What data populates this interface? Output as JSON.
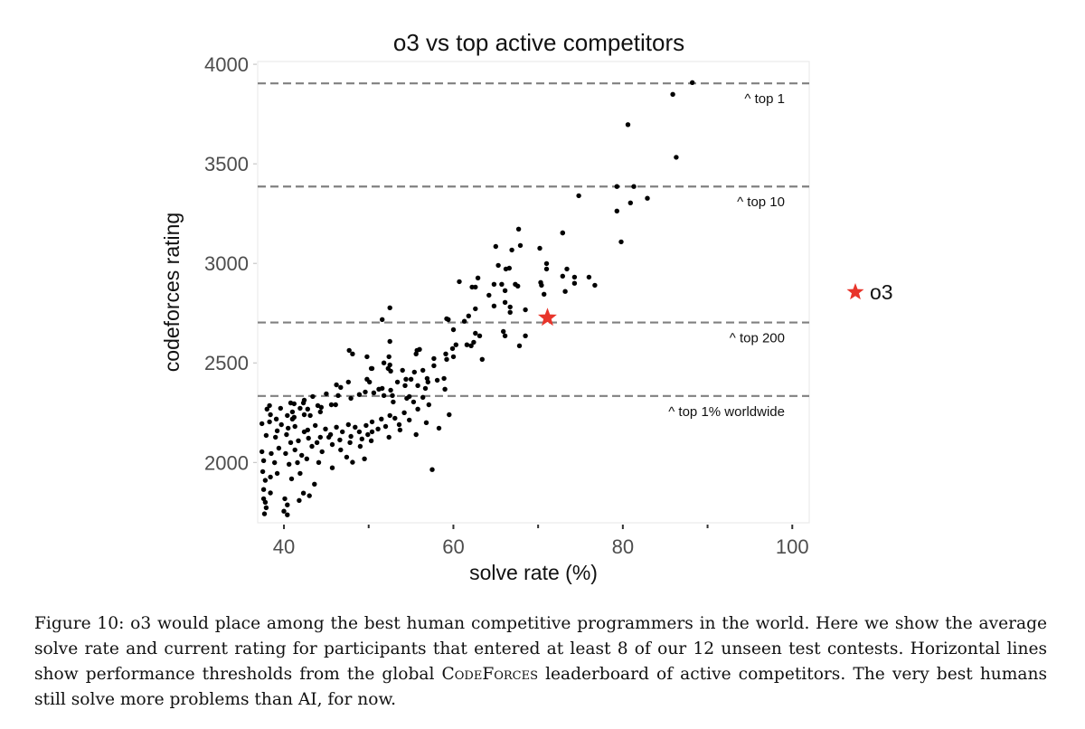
{
  "chart_data": {
    "type": "scatter",
    "title": "o3 vs top active competitors",
    "xlabel": "solve rate (%)",
    "ylabel": "codeforces rating",
    "xlim": [
      36.9,
      102
    ],
    "ylim": [
      1697,
      4014
    ],
    "xticks": [
      40,
      60,
      80,
      100
    ],
    "xtick_labels": [
      "40",
      "60",
      "80",
      "100"
    ],
    "yticks": [
      2000,
      2500,
      3000,
      3500,
      4000
    ],
    "ytick_labels": [
      "2000",
      "2500",
      "3000",
      "3500",
      "4000"
    ],
    "grid": false,
    "legend": {
      "position": "right",
      "entries": [
        {
          "label": "o3",
          "marker": "star",
          "color": "#e8352b"
        }
      ]
    },
    "thresholds": [
      {
        "value": 3904,
        "label": "^ top 1"
      },
      {
        "value": 3386,
        "label": "^ top 10"
      },
      {
        "value": 2703,
        "label": "^ top 200"
      },
      {
        "value": 2334,
        "label": "^ top 1% worldwide"
      }
    ],
    "highlight": {
      "name": "o3",
      "x": 71.1,
      "y": 2727,
      "color": "#e8352b"
    },
    "series": [
      {
        "name": "competitors",
        "color": "#000000",
        "points": [
          [
            88.2,
            3908
          ],
          [
            85.9,
            3849
          ],
          [
            80.6,
            3697
          ],
          [
            86.3,
            3533
          ],
          [
            79.3,
            3386
          ],
          [
            81.3,
            3386
          ],
          [
            74.8,
            3340
          ],
          [
            80.9,
            3304
          ],
          [
            82.9,
            3327
          ],
          [
            79.3,
            3263
          ],
          [
            72.9,
            3153
          ],
          [
            79.8,
            3108
          ],
          [
            67.7,
            3172
          ],
          [
            72.9,
            3153
          ],
          [
            65.0,
            3085
          ],
          [
            66.9,
            3067
          ],
          [
            67.9,
            3090
          ],
          [
            70.2,
            3076
          ],
          [
            71.0,
            2999
          ],
          [
            73.4,
            2972
          ],
          [
            62.9,
            2927
          ],
          [
            65.3,
            2990
          ],
          [
            66.2,
            2972
          ],
          [
            66.6,
            2976
          ],
          [
            71.0,
            2972
          ],
          [
            72.9,
            2936
          ],
          [
            74.3,
            2931
          ],
          [
            76.0,
            2931
          ],
          [
            74.3,
            2900
          ],
          [
            76.7,
            2890
          ],
          [
            60.7,
            2908
          ],
          [
            62.2,
            2881
          ],
          [
            62.6,
            2881
          ],
          [
            64.8,
            2895
          ],
          [
            65.7,
            2895
          ],
          [
            67.3,
            2895
          ],
          [
            67.6,
            2886
          ],
          [
            70.3,
            2904
          ],
          [
            70.4,
            2890
          ],
          [
            73.2,
            2859
          ],
          [
            66.1,
            2863
          ],
          [
            70.7,
            2845
          ],
          [
            64.2,
            2840
          ],
          [
            66.1,
            2804
          ],
          [
            66.7,
            2781
          ],
          [
            64.8,
            2786
          ],
          [
            62.6,
            2772
          ],
          [
            66.7,
            2754
          ],
          [
            68.5,
            2767
          ],
          [
            61.8,
            2736
          ],
          [
            61.3,
            2709
          ],
          [
            59.2,
            2722
          ],
          [
            59.4,
            2718
          ],
          [
            65.9,
            2658
          ],
          [
            66.1,
            2636
          ],
          [
            68.5,
            2636
          ],
          [
            63.1,
            2636
          ],
          [
            62.6,
            2649
          ],
          [
            67.8,
            2586
          ],
          [
            60.0,
            2667
          ],
          [
            62.4,
            2604
          ],
          [
            62.1,
            2586
          ],
          [
            60.3,
            2591
          ],
          [
            61.6,
            2591
          ],
          [
            59.9,
            2572
          ],
          [
            59.1,
            2545
          ],
          [
            63.4,
            2518
          ],
          [
            60.0,
            2531
          ],
          [
            59.2,
            2518
          ],
          [
            52.5,
            2777
          ],
          [
            51.6,
            2718
          ],
          [
            52.5,
            2608
          ],
          [
            47.7,
            2563
          ],
          [
            48.1,
            2545
          ],
          [
            49.8,
            2531
          ],
          [
            55.6,
            2545
          ],
          [
            55.7,
            2563
          ],
          [
            56.0,
            2568
          ],
          [
            57.7,
            2522
          ],
          [
            57.7,
            2486
          ],
          [
            52.4,
            2531
          ],
          [
            51.8,
            2500
          ],
          [
            52.5,
            2490
          ],
          [
            50.4,
            2472
          ],
          [
            50.3,
            2472
          ],
          [
            52.3,
            2472
          ],
          [
            52.6,
            2459
          ],
          [
            54.0,
            2463
          ],
          [
            54.4,
            2418
          ],
          [
            55.0,
            2418
          ],
          [
            56.4,
            2463
          ],
          [
            55.4,
            2454
          ],
          [
            49.8,
            2418
          ],
          [
            50.1,
            2404
          ],
          [
            47.6,
            2404
          ],
          [
            46.2,
            2390
          ],
          [
            46.7,
            2377
          ],
          [
            51.2,
            2368
          ],
          [
            51.6,
            2372
          ],
          [
            52.6,
            2363
          ],
          [
            53.4,
            2404
          ],
          [
            56.9,
            2422
          ],
          [
            57.0,
            2404
          ],
          [
            54.3,
            2386
          ],
          [
            55.8,
            2386
          ],
          [
            56.7,
            2372
          ],
          [
            59.0,
            2368
          ],
          [
            58.1,
            2413
          ],
          [
            58.9,
            2422
          ],
          [
            54.5,
            2322
          ],
          [
            52.8,
            2336
          ],
          [
            49.6,
            2354
          ],
          [
            51.8,
            2336
          ],
          [
            52.9,
            2304
          ],
          [
            54.8,
            2331
          ],
          [
            56.4,
            2327
          ],
          [
            55.3,
            2304
          ],
          [
            55.8,
            2268
          ],
          [
            57.1,
            2290
          ],
          [
            45.6,
            2290
          ],
          [
            46.1,
            2290
          ],
          [
            44.0,
            2286
          ],
          [
            44.4,
            2277
          ],
          [
            42.4,
            2313
          ],
          [
            44.3,
            2254
          ],
          [
            41.9,
            2272
          ],
          [
            41.2,
            2295
          ],
          [
            42.3,
            2299
          ],
          [
            42.4,
            2240
          ],
          [
            42.8,
            2268
          ],
          [
            41.0,
            2254
          ],
          [
            41.2,
            2227
          ],
          [
            43.1,
            2236
          ],
          [
            40.4,
            2236
          ],
          [
            41.0,
            2218
          ],
          [
            38.0,
            2268
          ],
          [
            38.4,
            2240
          ],
          [
            39.1,
            2218
          ],
          [
            37.4,
            2195
          ],
          [
            38.3,
            2204
          ],
          [
            39.7,
            2190
          ],
          [
            40.5,
            2172
          ],
          [
            41.3,
            2181
          ],
          [
            42.8,
            2163
          ],
          [
            43.7,
            2186
          ],
          [
            44.9,
            2168
          ],
          [
            46.2,
            2177
          ],
          [
            47.6,
            2190
          ],
          [
            48.9,
            2154
          ],
          [
            49.7,
            2186
          ],
          [
            50.4,
            2204
          ],
          [
            51.5,
            2218
          ],
          [
            52.5,
            2236
          ],
          [
            53.6,
            2190
          ],
          [
            54.8,
            2213
          ],
          [
            37.9,
            2136
          ],
          [
            39.0,
            2127
          ],
          [
            40.3,
            2140
          ],
          [
            41.7,
            2109
          ],
          [
            42.9,
            2122
          ],
          [
            44.3,
            2127
          ],
          [
            45.5,
            2140
          ],
          [
            46.6,
            2113
          ],
          [
            47.9,
            2131
          ],
          [
            49.2,
            2118
          ],
          [
            50.4,
            2154
          ],
          [
            52.4,
            2127
          ],
          [
            53.7,
            2163
          ],
          [
            55.6,
            2140
          ],
          [
            56.8,
            2200
          ],
          [
            58.3,
            2172
          ],
          [
            59.5,
            2240
          ],
          [
            37.4,
            2054
          ],
          [
            38.5,
            2045
          ],
          [
            39.4,
            2072
          ],
          [
            40.2,
            2045
          ],
          [
            41.3,
            2063
          ],
          [
            42.1,
            2036
          ],
          [
            43.3,
            2081
          ],
          [
            44.5,
            2054
          ],
          [
            45.7,
            2090
          ],
          [
            46.7,
            2063
          ],
          [
            47.8,
            2100
          ],
          [
            49.0,
            2081
          ],
          [
            50.3,
            2109
          ],
          [
            37.6,
            2009
          ],
          [
            38.9,
            1999
          ],
          [
            40.6,
            1991
          ],
          [
            41.6,
            1999
          ],
          [
            42.7,
            2018
          ],
          [
            44.1,
            2000
          ],
          [
            45.7,
            1973
          ],
          [
            47.4,
            2027
          ],
          [
            48.1,
            2001
          ],
          [
            57.5,
            1964
          ],
          [
            49.5,
            2018
          ],
          [
            37.5,
            1954
          ],
          [
            38.4,
            1927
          ],
          [
            37.8,
            1910
          ],
          [
            39.2,
            1945
          ],
          [
            40.9,
            1918
          ],
          [
            41.9,
            1945
          ],
          [
            43.6,
            1891
          ],
          [
            37.6,
            1864
          ],
          [
            38.4,
            1847
          ],
          [
            37.6,
            1818
          ],
          [
            37.8,
            1800
          ],
          [
            40.1,
            1818
          ],
          [
            40.4,
            1787
          ],
          [
            41.8,
            1809
          ],
          [
            42.3,
            1846
          ],
          [
            43.0,
            1833
          ],
          [
            37.9,
            1773
          ],
          [
            37.7,
            1742
          ],
          [
            40.0,
            1755
          ],
          [
            40.4,
            1737
          ],
          [
            38.3,
            2286
          ],
          [
            39.6,
            2272
          ],
          [
            40.8,
            2299
          ],
          [
            43.4,
            2331
          ],
          [
            45.0,
            2345
          ],
          [
            46.4,
            2336
          ],
          [
            47.9,
            2322
          ],
          [
            48.9,
            2341
          ],
          [
            50.6,
            2350
          ],
          [
            39.2,
            2159
          ],
          [
            40.8,
            2100
          ],
          [
            42.4,
            2154
          ],
          [
            43.9,
            2100
          ],
          [
            45.3,
            2127
          ],
          [
            46.9,
            2154
          ],
          [
            48.4,
            2177
          ],
          [
            49.9,
            2140
          ],
          [
            51.1,
            2168
          ],
          [
            52.0,
            2181
          ],
          [
            53.1,
            2222
          ],
          [
            54.2,
            2250
          ]
        ]
      }
    ]
  },
  "caption": {
    "prefix": "Figure 10: o3 would place among the best human competitive programmers in the world. Here we show the average solve rate and current rating for participants that entered at least 8 of our 12 unseen test contests. Horizontal lines show performance thresholds from the global ",
    "smallcaps": "CodeForces",
    "suffix": " leaderboard of active competitors. The very best humans still solve more problems than AI, for now."
  }
}
